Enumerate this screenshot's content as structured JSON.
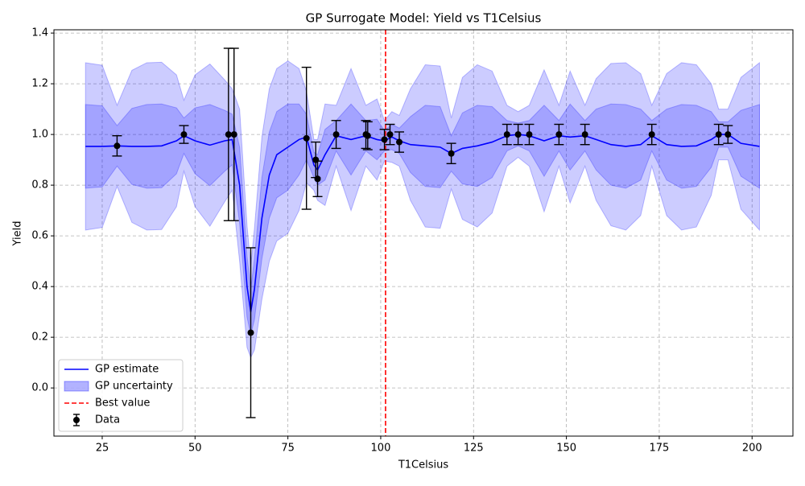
{
  "chart_data": {
    "type": "line",
    "title": "GP Surrogate Model: Yield vs T1Celsius",
    "x_label": "T1Celsius",
    "y_label": "Yield",
    "xlim": [
      12,
      211
    ],
    "ylim": [
      -0.19,
      1.413
    ],
    "xticks": [
      25,
      50,
      75,
      100,
      125,
      150,
      175,
      200
    ],
    "yticks": [
      {
        "value": 0,
        "label": "0.0"
      },
      0.2,
      0.4,
      0.6,
      0.8,
      {
        "value": 1,
        "label": "1.0"
      },
      1.2,
      1.4
    ],
    "grid": true,
    "legend": "lower left",
    "x": [
      20.5,
      25,
      29,
      33,
      37,
      41,
      45,
      47,
      50,
      54,
      58,
      60,
      62,
      64,
      65,
      66,
      68,
      70,
      72,
      75,
      78,
      80,
      82,
      83,
      85,
      88,
      92,
      96,
      99,
      101,
      103,
      105,
      108,
      112,
      116,
      119,
      122,
      126,
      130,
      134,
      137,
      140,
      144,
      148,
      151,
      155,
      158,
      162,
      166,
      170,
      173,
      177,
      181,
      185,
      189,
      191,
      193.5,
      197,
      202
    ],
    "series": [
      {
        "name": "GP estimate",
        "color": "#0000ff",
        "values": [
          0.953,
          0.953,
          0.955,
          0.953,
          0.953,
          0.955,
          0.975,
          0.995,
          0.975,
          0.958,
          0.975,
          0.98,
          0.8,
          0.4,
          0.3,
          0.39,
          0.67,
          0.84,
          0.92,
          0.95,
          0.98,
          0.99,
          0.88,
          0.86,
          0.92,
          0.995,
          0.98,
          0.995,
          0.98,
          0.975,
          0.99,
          0.975,
          0.96,
          0.955,
          0.95,
          0.925,
          0.945,
          0.955,
          0.97,
          0.995,
          1.0,
          0.995,
          0.975,
          0.995,
          0.99,
          0.995,
          0.98,
          0.96,
          0.953,
          0.96,
          0.995,
          0.96,
          0.953,
          0.955,
          0.98,
          1.0,
          1.0,
          0.965,
          0.953
        ]
      }
    ],
    "bands": [
      {
        "name": "GP uncertainty",
        "color": "#0000ff",
        "lower": [
          0.623,
          0.633,
          0.795,
          0.653,
          0.623,
          0.625,
          0.715,
          0.855,
          0.715,
          0.638,
          0.735,
          0.78,
          0.5,
          0.16,
          0.12,
          0.15,
          0.35,
          0.5,
          0.58,
          0.61,
          0.7,
          0.81,
          0.78,
          0.74,
          0.72,
          0.875,
          0.7,
          0.875,
          0.82,
          0.895,
          0.89,
          0.875,
          0.74,
          0.635,
          0.63,
          0.785,
          0.665,
          0.635,
          0.69,
          0.875,
          0.91,
          0.875,
          0.695,
          0.875,
          0.73,
          0.875,
          0.74,
          0.64,
          0.623,
          0.68,
          0.875,
          0.68,
          0.623,
          0.635,
          0.76,
          0.9,
          0.9,
          0.705,
          0.623
        ],
        "upper": [
          1.283,
          1.273,
          1.115,
          1.253,
          1.283,
          1.285,
          1.235,
          1.135,
          1.235,
          1.278,
          1.215,
          1.18,
          1.1,
          0.64,
          0.48,
          0.63,
          0.99,
          1.18,
          1.26,
          1.29,
          1.26,
          1.17,
          0.98,
          0.98,
          1.12,
          1.115,
          1.26,
          1.115,
          1.14,
          1.055,
          1.09,
          1.075,
          1.18,
          1.275,
          1.27,
          1.065,
          1.225,
          1.275,
          1.25,
          1.115,
          1.09,
          1.115,
          1.255,
          1.115,
          1.25,
          1.115,
          1.22,
          1.28,
          1.283,
          1.24,
          1.115,
          1.24,
          1.283,
          1.275,
          1.2,
          1.1,
          1.1,
          1.225,
          1.283
        ]
      },
      {
        "color": "#0000ff",
        "lower": [
          0.788,
          0.793,
          0.875,
          0.803,
          0.788,
          0.79,
          0.845,
          0.925,
          0.845,
          0.798,
          0.855,
          0.88,
          0.65,
          0.28,
          0.21,
          0.27,
          0.51,
          0.67,
          0.75,
          0.78,
          0.84,
          0.9,
          0.83,
          0.8,
          0.82,
          0.935,
          0.84,
          0.935,
          0.9,
          0.935,
          0.94,
          0.925,
          0.85,
          0.795,
          0.79,
          0.855,
          0.805,
          0.795,
          0.83,
          0.935,
          0.955,
          0.935,
          0.835,
          0.935,
          0.86,
          0.935,
          0.86,
          0.8,
          0.788,
          0.82,
          0.935,
          0.82,
          0.788,
          0.795,
          0.87,
          0.95,
          0.95,
          0.835,
          0.788
        ],
        "upper": [
          1.118,
          1.113,
          1.035,
          1.103,
          1.118,
          1.12,
          1.105,
          1.065,
          1.105,
          1.118,
          1.095,
          1.08,
          0.95,
          0.52,
          0.39,
          0.51,
          0.83,
          1.01,
          1.09,
          1.12,
          1.12,
          1.08,
          0.93,
          0.92,
          1.02,
          1.055,
          1.12,
          1.055,
          1.06,
          1.015,
          1.04,
          1.025,
          1.07,
          1.115,
          1.11,
          0.995,
          1.085,
          1.115,
          1.11,
          1.055,
          1.045,
          1.055,
          1.115,
          1.055,
          1.12,
          1.055,
          1.1,
          1.12,
          1.118,
          1.1,
          1.055,
          1.1,
          1.118,
          1.115,
          1.09,
          1.05,
          1.05,
          1.095,
          1.118
        ]
      }
    ],
    "vline": {
      "name": "Best value",
      "x": 101.3,
      "color": "#ff0000"
    },
    "points": {
      "name": "Data",
      "color": "#000000",
      "x": [
        29,
        47,
        59,
        60.5,
        65,
        80,
        82.5,
        83,
        88,
        96,
        96.5,
        101,
        102.5,
        105,
        119,
        134,
        137,
        140,
        148,
        155,
        173,
        191,
        193.5
      ],
      "values": [
        0.955,
        1.0,
        1.0,
        1.0,
        0.218,
        0.985,
        0.9,
        0.825,
        1.0,
        1.0,
        0.995,
        0.98,
        1.0,
        0.97,
        0.925,
        1.0,
        1.0,
        1.0,
        1.0,
        1.0,
        1.0,
        1.0,
        1.0
      ],
      "errors": [
        0.04,
        0.035,
        0.34,
        0.34,
        0.335,
        0.28,
        0.07,
        0.07,
        0.055,
        0.055,
        0.055,
        0.04,
        0.04,
        0.04,
        0.04,
        0.04,
        0.04,
        0.04,
        0.04,
        0.04,
        0.04,
        0.04,
        0.035
      ]
    }
  }
}
